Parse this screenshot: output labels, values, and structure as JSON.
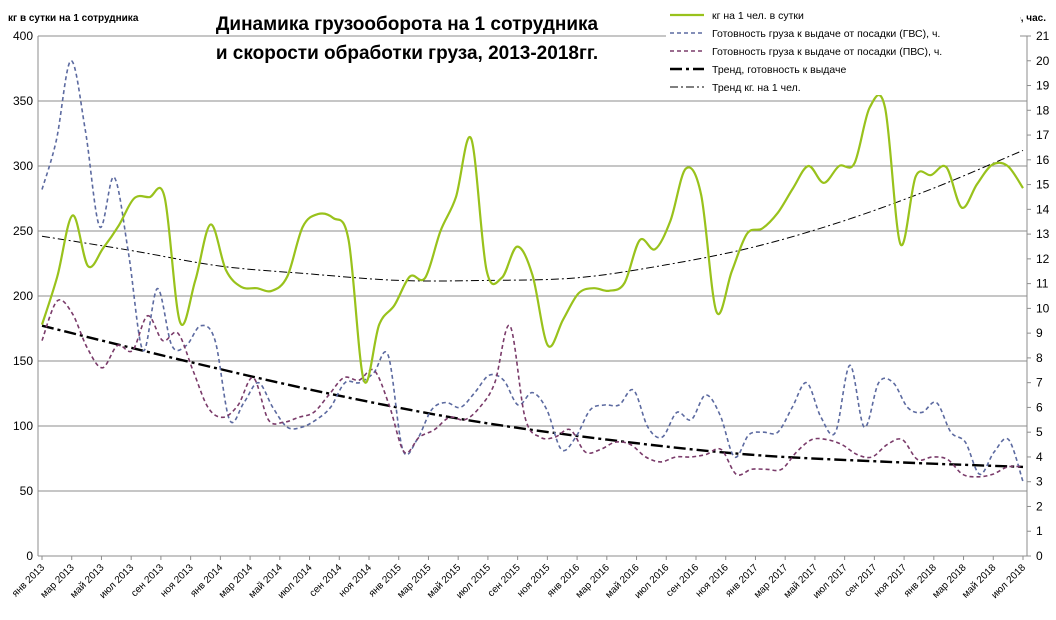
{
  "chart_data": {
    "type": "line",
    "title_lines": [
      "Динамика грузооборота на 1 сотрудника",
      "и скорости обработки груза, 2013-2018гг."
    ],
    "ylabel_left": "кг в сутки на 1 сотрудника",
    "ylabel_right": "Готовность к выдаче, час.",
    "ylim_left": [
      0,
      400
    ],
    "ylim_right": [
      0,
      21
    ],
    "y_ticks_left": [
      0,
      50,
      100,
      150,
      200,
      250,
      300,
      350,
      400
    ],
    "y_ticks_right": [
      0,
      1,
      2,
      3,
      4,
      5,
      6,
      7,
      8,
      9,
      10,
      11,
      12,
      13,
      14,
      15,
      16,
      17,
      18,
      19,
      20,
      21
    ],
    "grid": "horizontal",
    "legend_position": "top-right",
    "x_labels": [
      "янв 2013",
      "мар 2013",
      "май 2013",
      "июл 2013",
      "сен 2013",
      "ноя 2013",
      "янв 2014",
      "мар 2014",
      "май 2014",
      "июл 2014",
      "сен 2014",
      "ноя 2014",
      "янв 2015",
      "мар 2015",
      "май 2015",
      "июл 2015",
      "сен 2015",
      "ноя 2015",
      "янв 2016",
      "мар 2016",
      "май 2016",
      "июл 2016",
      "сен 2016",
      "ноя 2016",
      "янв 2017",
      "мар 2017",
      "май 2017",
      "июл 2017",
      "сен 2017",
      "ноя 2017",
      "янв 2018",
      "мар 2018",
      "май 2018",
      "июл 2018"
    ],
    "series": [
      {
        "name": "кг на 1 чел. в сутки",
        "axis": "left",
        "color": "#99c21c",
        "style": "solid",
        "values": [
          178,
          215,
          262,
          223,
          237,
          254,
          275,
          276,
          276,
          180,
          212,
          255,
          220,
          207,
          206,
          204,
          215,
          253,
          263,
          260,
          243,
          135,
          178,
          193,
          215,
          214,
          250,
          276,
          321,
          220,
          214,
          238,
          216,
          162,
          182,
          202,
          206,
          204,
          210,
          243,
          236,
          258,
          298,
          278,
          188,
          219,
          248,
          252,
          264,
          283,
          300,
          287,
          300,
          302,
          345,
          345,
          240,
          292,
          293,
          299,
          268,
          286,
          301,
          300,
          283
        ],
        "x_index_start": 0
      },
      {
        "name": "Готовность груза к выдаче от посадки (ГВС), ч.",
        "axis": "right",
        "color": "#5c6aa0",
        "style": "dash",
        "values": [
          14.8,
          16.8,
          20,
          17.2,
          13.3,
          15.3,
          12.2,
          8.3,
          10.8,
          8.5,
          8.5,
          9.3,
          8.7,
          5.5,
          6.2,
          7,
          6,
          5.2,
          5.2,
          5.5,
          6,
          7,
          7,
          7.4,
          8.1,
          4.3,
          4.7,
          5.9,
          6.2,
          6,
          6.6,
          7.3,
          7.1,
          6.1,
          6.6,
          5.9,
          4.3,
          4.8,
          5.9,
          6.1,
          6.1,
          6.7,
          5.2,
          4.8,
          5.8,
          5.5,
          6.5,
          5.7,
          4,
          4.9,
          5,
          5,
          6,
          7,
          5.6,
          5,
          7.7,
          5.2,
          7,
          7,
          6,
          5.8,
          6.2,
          5,
          4.6,
          3.3,
          4.2,
          4.7,
          3
        ],
        "x_index_start": 0
      },
      {
        "name": "Готовность груза к выдаче от посадки (ПВС), ч.",
        "axis": "right",
        "color": "#7a3b6a",
        "style": "dash",
        "values": [
          8.7,
          10.3,
          9.8,
          8.4,
          7.6,
          8.5,
          8.3,
          9.7,
          8.7,
          9,
          7.5,
          6,
          5.6,
          6.1,
          7.2,
          5.5,
          5.4,
          5.6,
          5.8,
          6.5,
          7.2,
          7.1,
          7.5,
          6.1,
          4.2,
          4.8,
          5.1,
          5.6,
          5.5,
          6,
          7,
          9.3,
          5.6,
          4.8,
          4.8,
          5.1,
          4.2,
          4.3,
          4.6,
          4.5,
          4,
          3.8,
          4,
          4,
          4.1,
          4.3,
          3.3,
          3.5,
          3.5,
          3.5,
          4.2,
          4.7,
          4.7,
          4.5,
          4.1,
          4,
          4.5,
          4.7,
          3.9,
          4,
          3.9,
          3.3,
          3.2,
          3.3,
          3.6,
          3.6
        ],
        "x_index_start": 0
      },
      {
        "name": "Тренд, готовность к выдаче",
        "axis": "right",
        "color": "#000000",
        "style": "dashdot-bold",
        "values": [
          9.3,
          7.9,
          6.6,
          5.5,
          4.7,
          4.1,
          3.8,
          3.6
        ],
        "x_index_start": 0,
        "x_step": 9.5
      },
      {
        "name": "Тренд кг. на 1 чел.",
        "axis": "left",
        "color": "#000000",
        "style": "dashdot-thin",
        "values": [
          246,
          235,
          223,
          217,
          212,
          212,
          214,
          224,
          238,
          258,
          283,
          312
        ],
        "x_index_start": 0,
        "x_step": 6
      }
    ]
  }
}
